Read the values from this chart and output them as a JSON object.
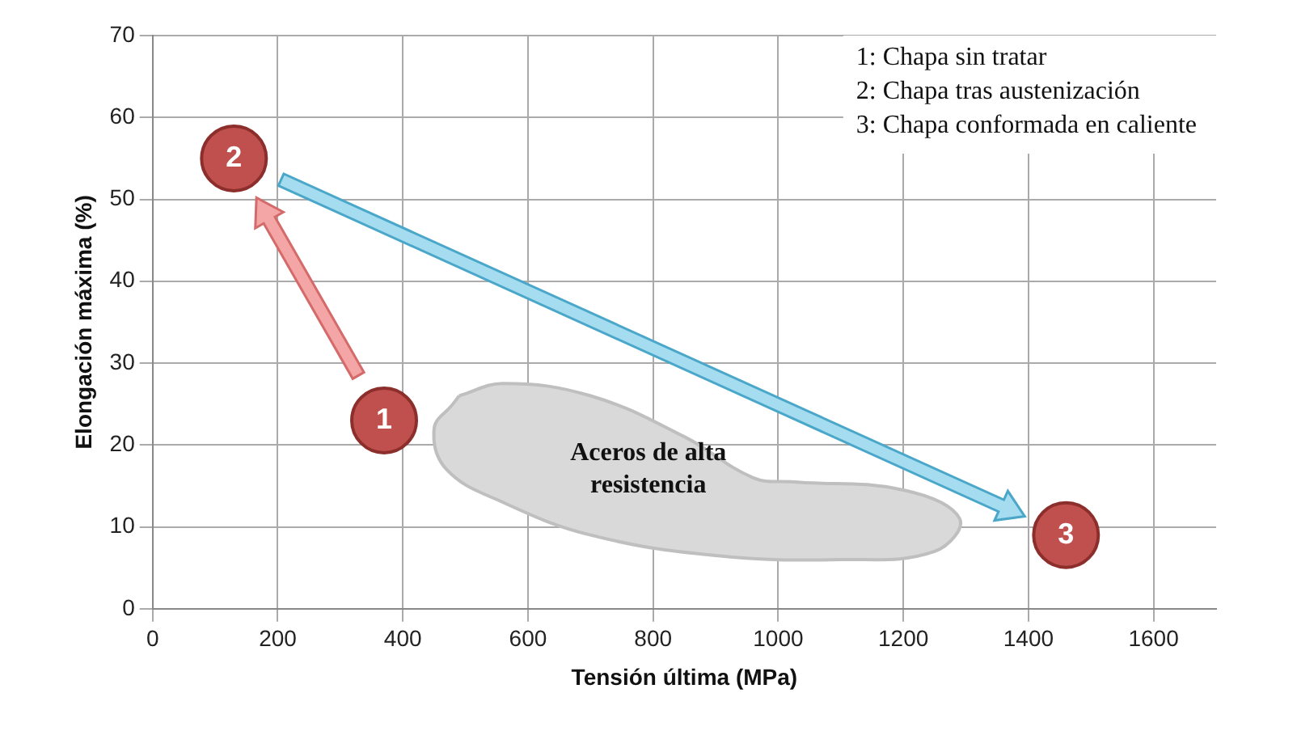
{
  "chart_data": {
    "type": "scatter",
    "xlabel": "Tensión última (MPa)",
    "ylabel": "Elongación máxima (%)",
    "xlim": [
      0,
      1700
    ],
    "ylim": [
      0,
      70
    ],
    "xticks": [
      0,
      200,
      400,
      600,
      800,
      1000,
      1200,
      1400,
      1600
    ],
    "yticks": [
      0,
      10,
      20,
      30,
      40,
      50,
      60,
      70
    ],
    "grid": true,
    "legend": false,
    "series": [
      {
        "type": "area",
        "name": "Aceros de alta resistencia",
        "color": "#d9d9d9",
        "x": [
          490,
          560,
          700,
          850,
          960,
          1020,
          1200,
          1290,
          1250,
          1100,
          900,
          700,
          560,
          470,
          450,
          480,
          490
        ],
        "values": [
          26,
          27.5,
          26,
          21,
          16,
          15.5,
          14.5,
          11,
          7,
          6,
          6.5,
          9,
          13,
          17,
          22,
          25,
          26
        ]
      },
      {
        "color": "#c0504d",
        "marker": "circle",
        "x": [
          370,
          130,
          1460
        ],
        "values": [
          23,
          55,
          9
        ]
      }
    ],
    "annotations": [
      "1: Chapa sin tratar",
      "2: Chapa tras austenización",
      "3: Chapa conformada en caliente",
      {
        "text": "1",
        "x": 370,
        "y": 23
      },
      {
        "text": "2",
        "x": 130,
        "y": 55
      },
      {
        "text": "3",
        "x": 1460,
        "y": 9
      }
    ]
  }
}
